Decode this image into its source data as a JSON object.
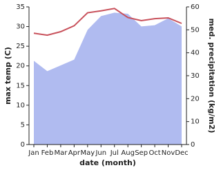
{
  "chart_data": {
    "type": "line",
    "x_label": "date (month)",
    "y_label": "max temp (C)",
    "y2_label": "med. precipitation (kg/m2)",
    "categories": [
      "Jan",
      "Feb",
      "Mar",
      "Apr",
      "May",
      "Jun",
      "Jul",
      "Aug",
      "Sep",
      "Oct",
      "Nov",
      "Dec"
    ],
    "series": [
      {
        "name": "med. precipitation (kg/m2)",
        "type": "area",
        "axis": "y2",
        "color": "#b0bbf0",
        "values": [
          36.5,
          32,
          34.5,
          37,
          50,
          56,
          57.5,
          57,
          51.5,
          52,
          55,
          51.5
        ]
      },
      {
        "name": "max temp (C)",
        "type": "line",
        "axis": "y",
        "color": "#c8505a",
        "values": [
          28.3,
          27.8,
          28.7,
          30.2,
          33.5,
          34,
          34.6,
          32.3,
          31.5,
          32,
          32.2,
          30.8
        ]
      }
    ],
    "ylim": [
      0,
      35
    ],
    "yticks": [
      0,
      5,
      10,
      15,
      20,
      25,
      30,
      35
    ],
    "y2lim": [
      0,
      60
    ],
    "y2ticks": [
      0,
      10,
      20,
      30,
      40,
      50,
      60
    ]
  }
}
